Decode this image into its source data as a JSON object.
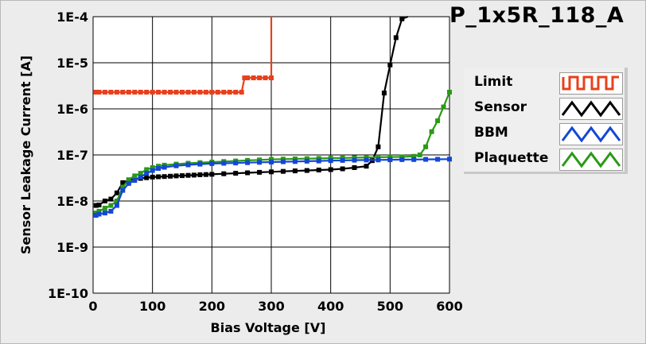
{
  "chart_data": {
    "type": "line",
    "title": "P_1x5R_118_A",
    "xlabel": "Bias Voltage [V]",
    "ylabel": "Sensor Leakage Current [A]",
    "xlim": [
      0,
      600
    ],
    "ylim": [
      1e-10,
      0.0001
    ],
    "y_scale": "log",
    "grid": true,
    "legend_position": "right",
    "x_ticks": [
      "0",
      "100",
      "200",
      "300",
      "400",
      "500",
      "600"
    ],
    "y_ticks": [
      "1E-10",
      "1E-9",
      "1E-8",
      "1E-7",
      "1E-6",
      "1E-5",
      "1E-4"
    ],
    "series": [
      {
        "name": "Limit",
        "color": "#e8401c",
        "x": [
          5,
          10,
          20,
          30,
          40,
          50,
          60,
          70,
          80,
          90,
          100,
          110,
          120,
          130,
          140,
          150,
          160,
          170,
          180,
          190,
          200,
          210,
          220,
          230,
          240,
          250,
          255,
          260,
          270,
          280,
          290,
          300,
          300
        ],
        "y": [
          2.3e-06,
          2.3e-06,
          2.3e-06,
          2.3e-06,
          2.3e-06,
          2.3e-06,
          2.3e-06,
          2.3e-06,
          2.3e-06,
          2.3e-06,
          2.3e-06,
          2.3e-06,
          2.3e-06,
          2.3e-06,
          2.3e-06,
          2.3e-06,
          2.3e-06,
          2.3e-06,
          2.3e-06,
          2.3e-06,
          2.3e-06,
          2.3e-06,
          2.3e-06,
          2.3e-06,
          2.3e-06,
          2.3e-06,
          4.7e-06,
          4.7e-06,
          4.7e-06,
          4.7e-06,
          4.7e-06,
          4.7e-06,
          0.0001
        ]
      },
      {
        "name": "Sensor",
        "color": "#000000",
        "x": [
          5,
          10,
          20,
          30,
          40,
          50,
          60,
          70,
          80,
          90,
          100,
          110,
          120,
          130,
          140,
          150,
          160,
          170,
          180,
          190,
          200,
          220,
          240,
          260,
          280,
          300,
          320,
          340,
          360,
          380,
          400,
          420,
          440,
          460,
          470,
          480,
          490,
          500,
          510,
          520,
          530
        ],
        "y": [
          8e-09,
          8.2e-09,
          1e-08,
          1.1e-08,
          1.5e-08,
          2.5e-08,
          2.8e-08,
          3e-08,
          3.1e-08,
          3.2e-08,
          3.3e-08,
          3.35e-08,
          3.4e-08,
          3.45e-08,
          3.5e-08,
          3.55e-08,
          3.6e-08,
          3.65e-08,
          3.7e-08,
          3.75e-08,
          3.8e-08,
          3.9e-08,
          4e-08,
          4.1e-08,
          4.2e-08,
          4.3e-08,
          4.4e-08,
          4.5e-08,
          4.6e-08,
          4.7e-08,
          4.8e-08,
          5e-08,
          5.3e-08,
          5.7e-08,
          7.5e-08,
          1.5e-07,
          2.2e-06,
          9e-06,
          3.5e-05,
          9e-05,
          0.0001
        ]
      },
      {
        "name": "BBM",
        "color": "#1447d6",
        "x": [
          5,
          10,
          20,
          30,
          40,
          50,
          60,
          70,
          80,
          90,
          100,
          110,
          120,
          140,
          160,
          180,
          200,
          220,
          240,
          260,
          280,
          300,
          320,
          340,
          360,
          380,
          400,
          420,
          440,
          460,
          480,
          500,
          520,
          540,
          560,
          580,
          600
        ],
        "y": [
          4.9e-09,
          5.2e-09,
          5.5e-09,
          6e-09,
          8e-09,
          1.7e-08,
          2.4e-08,
          2.8e-08,
          3.3e-08,
          4e-08,
          4.6e-08,
          5.1e-08,
          5.4e-08,
          5.8e-08,
          6.1e-08,
          6.3e-08,
          6.5e-08,
          6.6e-08,
          6.7e-08,
          6.8e-08,
          6.9e-08,
          7e-08,
          7.1e-08,
          7.2e-08,
          7.3e-08,
          7.4e-08,
          7.5e-08,
          7.6e-08,
          7.7e-08,
          7.75e-08,
          7.8e-08,
          7.85e-08,
          7.9e-08,
          7.95e-08,
          8e-08,
          8.05e-08,
          8.1e-08
        ]
      },
      {
        "name": "Plaquette",
        "color": "#2a9a14",
        "x": [
          5,
          10,
          20,
          30,
          40,
          50,
          60,
          70,
          80,
          90,
          100,
          110,
          120,
          140,
          160,
          180,
          200,
          220,
          240,
          260,
          280,
          300,
          320,
          340,
          360,
          380,
          400,
          420,
          440,
          460,
          480,
          500,
          520,
          540,
          550,
          560,
          570,
          580,
          590,
          600
        ],
        "y": [
          5.5e-09,
          6e-09,
          7e-09,
          8e-09,
          1e-08,
          2e-08,
          2.9e-08,
          3.5e-08,
          4e-08,
          4.8e-08,
          5.3e-08,
          5.7e-08,
          6e-08,
          6.3e-08,
          6.6e-08,
          6.8e-08,
          7e-08,
          7.2e-08,
          7.4e-08,
          7.6e-08,
          7.8e-08,
          8e-08,
          8.1e-08,
          8.2e-08,
          8.3e-08,
          8.4e-08,
          8.5e-08,
          8.6e-08,
          8.7e-08,
          8.8e-08,
          8.9e-08,
          9e-08,
          9.1e-08,
          9.3e-08,
          1e-07,
          1.5e-07,
          3.2e-07,
          5.5e-07,
          1.1e-06,
          2.3e-06
        ]
      }
    ]
  }
}
